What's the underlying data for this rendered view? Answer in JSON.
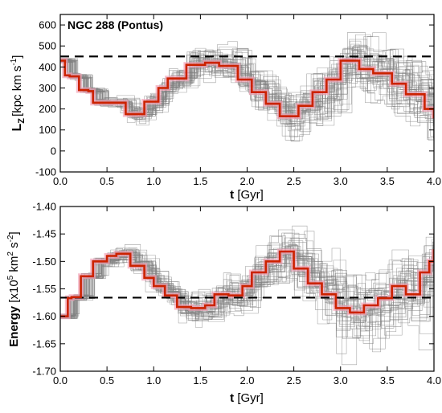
{
  "chart_data": [
    {
      "type": "line",
      "title": "NGC 288 (Pontus)",
      "xlabel": {
        "main": "t",
        "unit": "[Gyr]"
      },
      "ylabel": {
        "main": "L",
        "sub": "Z",
        "unit": "[kpc km s",
        "exp": "-1",
        "close": "]"
      },
      "xlim": [
        0.0,
        4.0
      ],
      "ylim": [
        -100,
        650
      ],
      "xticks": [
        0.0,
        0.5,
        1.0,
        1.5,
        2.0,
        2.5,
        3.0,
        3.5,
        4.0
      ],
      "xtick_labels": [
        "0.0",
        "0.5",
        "1.0",
        "1.5",
        "2.0",
        "2.5",
        "3.0",
        "3.5",
        "4.0"
      ],
      "yticks": [
        -100,
        0,
        100,
        200,
        300,
        400,
        500,
        600
      ],
      "ytick_labels": [
        "-100",
        "0",
        "100",
        "200",
        "300",
        "400",
        "500",
        "600"
      ],
      "reference_line": {
        "y": 450,
        "style": "dashed",
        "color": "#000000"
      },
      "series": [
        {
          "role": "orbit",
          "color": "#cc2200",
          "x": [
            0.0,
            0.05,
            0.1,
            0.2,
            0.3,
            0.35,
            0.5,
            0.7,
            0.9,
            1.05,
            1.15,
            1.35,
            1.55,
            1.7,
            1.9,
            2.05,
            2.2,
            2.35,
            2.55,
            2.7,
            2.85,
            3.0,
            3.2,
            3.35,
            3.55,
            3.7,
            3.9,
            4.0
          ],
          "y": [
            430,
            360,
            355,
            290,
            285,
            230,
            230,
            175,
            235,
            300,
            345,
            410,
            420,
            405,
            340,
            280,
            225,
            165,
            215,
            280,
            340,
            430,
            390,
            370,
            320,
            270,
            200,
            155
          ]
        }
      ],
      "colors": {
        "orbit": "#cc2200",
        "orbit_shade": "#f2a4b8",
        "ensemble": "#808080"
      },
      "ensemble_count": 45
    },
    {
      "type": "line",
      "title": "",
      "xlabel": {
        "main": "t",
        "unit": "[Gyr]"
      },
      "ylabel": {
        "main": "Energy",
        "unit": "[x10",
        "exp1": "5",
        "mid": " km",
        "exp2": "2",
        "mid2": " s",
        "exp3": "-2",
        "close": "]"
      },
      "xlim": [
        0.0,
        4.0
      ],
      "ylim": [
        -1.7,
        -1.4
      ],
      "xticks": [
        0.0,
        0.5,
        1.0,
        1.5,
        2.0,
        2.5,
        3.0,
        3.5,
        4.0
      ],
      "xtick_labels": [
        "0.0",
        "0.5",
        "1.0",
        "1.5",
        "2.0",
        "2.5",
        "3.0",
        "3.5",
        "4.0"
      ],
      "yticks": [
        -1.7,
        -1.65,
        -1.6,
        -1.55,
        -1.5,
        -1.45,
        -1.4
      ],
      "ytick_labels": [
        "-1.70",
        "-1.65",
        "-1.60",
        "-1.55",
        "-1.50",
        "-1.45",
        "-1.40"
      ],
      "reference_line": {
        "y": -1.566,
        "style": "dashed",
        "color": "#000000"
      },
      "series": [
        {
          "role": "orbit",
          "color": "#cc2200",
          "x": [
            0.0,
            0.08,
            0.12,
            0.22,
            0.35,
            0.5,
            0.6,
            0.75,
            0.9,
            1.0,
            1.12,
            1.25,
            1.4,
            1.55,
            1.65,
            1.8,
            1.95,
            2.05,
            2.2,
            2.35,
            2.5,
            2.65,
            2.8,
            2.95,
            3.1,
            3.25,
            3.4,
            3.55,
            3.7,
            3.85,
            3.95,
            4.0
          ],
          "y": [
            -1.6,
            -1.567,
            -1.565,
            -1.527,
            -1.5,
            -1.49,
            -1.486,
            -1.508,
            -1.53,
            -1.545,
            -1.562,
            -1.583,
            -1.585,
            -1.58,
            -1.56,
            -1.562,
            -1.545,
            -1.52,
            -1.5,
            -1.482,
            -1.513,
            -1.54,
            -1.56,
            -1.585,
            -1.593,
            -1.58,
            -1.567,
            -1.545,
            -1.56,
            -1.52,
            -1.5,
            -1.478
          ]
        }
      ],
      "colors": {
        "orbit": "#cc2200",
        "orbit_shade": "#f2a4b8",
        "ensemble": "#808080"
      },
      "ensemble_count": 45
    }
  ]
}
